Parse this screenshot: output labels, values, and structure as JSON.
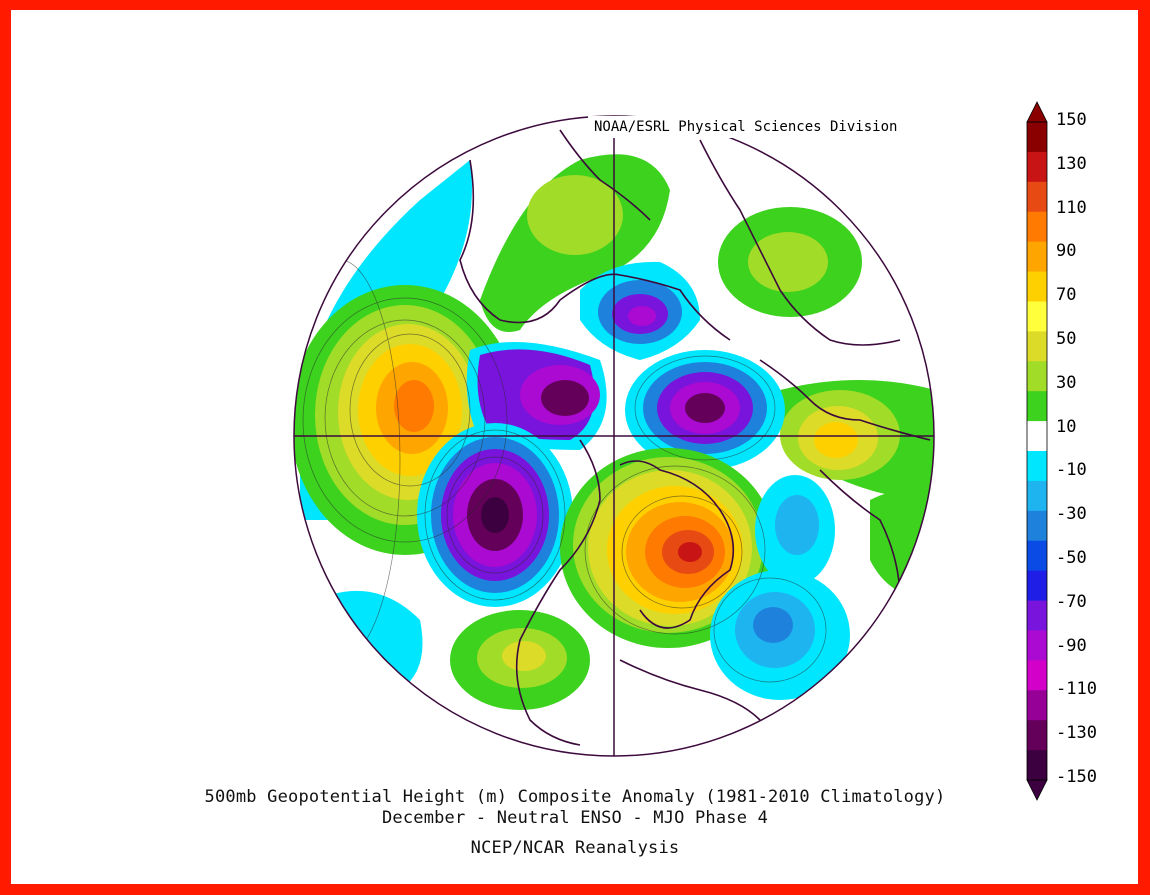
{
  "credit": "NOAA/ESRL Physical Sciences Division",
  "title_line1": "500mb Geopotential Height (m) Composite Anomaly (1981-2010 Climatology)",
  "title_line2": "December - Neutral ENSO - MJO Phase 4",
  "source": "NCEP/NCAR Reanalysis",
  "colorbar": {
    "labels": [
      "150",
      "130",
      "110",
      "90",
      "70",
      "50",
      "30",
      "10",
      "-10",
      "-30",
      "-50",
      "-70",
      "-90",
      "-110",
      "-130",
      "-150"
    ],
    "colors": [
      "#8a0000",
      "#c81414",
      "#e84a14",
      "#ff7a00",
      "#ffa500",
      "#ffd000",
      "#ffff3c",
      "#dcdc28",
      "#a0dc28",
      "#3cd21e",
      "#ffffff",
      "#00e6ff",
      "#1eb4f0",
      "#1e82dc",
      "#0a4be6",
      "#1e1ee6",
      "#7814dc",
      "#aa0ad2",
      "#d200c8",
      "#960096",
      "#64005a",
      "#3c0040"
    ],
    "max_label": "150",
    "min_label": "-150"
  },
  "map": {
    "projection": "polar stereographic, Northern Hemisphere",
    "anomalies": [
      {
        "region": "North Pacific",
        "sign": "positive",
        "peak": 110
      },
      {
        "region": "Western North America / Pacific NW",
        "sign": "negative",
        "peak": -130
      },
      {
        "region": "Central Canada / Hudson Bay",
        "sign": "negative",
        "peak": -130
      },
      {
        "region": "Eastern North America / Labrador",
        "sign": "positive",
        "peak": 130
      },
      {
        "region": "Arctic / Greenland",
        "sign": "negative",
        "peak": -110
      },
      {
        "region": "Northern Siberia",
        "sign": "negative",
        "peak": -130
      },
      {
        "region": "Western Europe / Atlantic",
        "sign": "negative",
        "peak": -50
      },
      {
        "region": "Eastern Europe / Middle East",
        "sign": "positive",
        "peak": 70
      },
      {
        "region": "Central Asia",
        "sign": "positive",
        "peak": 30
      },
      {
        "region": "Southern Asia",
        "sign": "positive",
        "peak": 30
      },
      {
        "region": "Central Pacific south",
        "sign": "positive",
        "peak": 30
      }
    ]
  }
}
